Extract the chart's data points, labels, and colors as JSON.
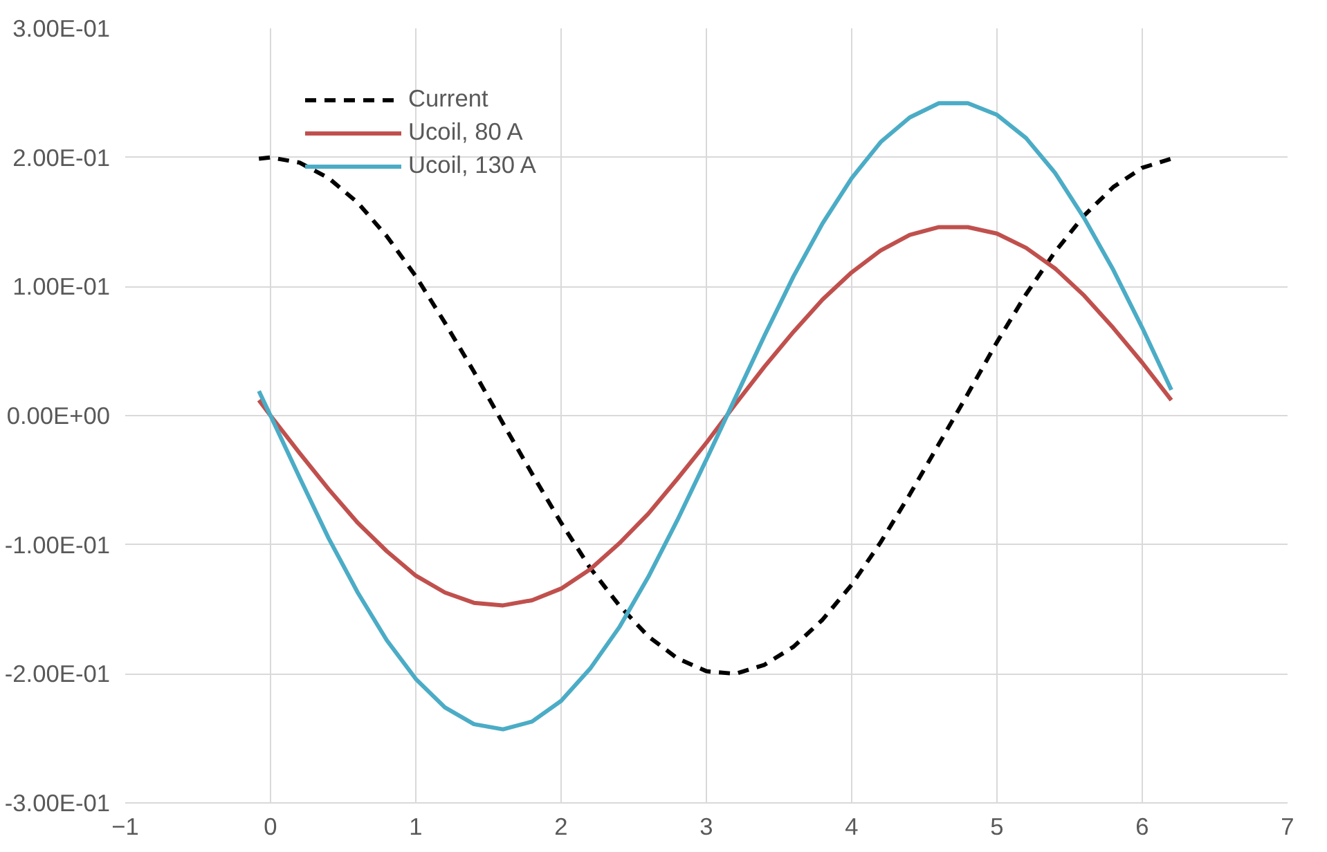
{
  "chart_data": {
    "type": "line",
    "x": [
      -0.08,
      0,
      0.2,
      0.4,
      0.6,
      0.8,
      1.0,
      1.2,
      1.4,
      1.6,
      1.8,
      2.0,
      2.2,
      2.4,
      2.6,
      2.8,
      3.0,
      3.2,
      3.4,
      3.6,
      3.8,
      4.0,
      4.2,
      4.4,
      4.6,
      4.8,
      5.0,
      5.2,
      5.4,
      5.6,
      5.8,
      6.0,
      6.2
    ],
    "series": [
      {
        "name": "Current",
        "color": "#000000",
        "line_style": "dashed",
        "values": [
          0.199,
          0.2,
          0.196,
          0.184,
          0.165,
          0.139,
          0.108,
          0.072,
          0.034,
          -0.006,
          -0.045,
          -0.083,
          -0.118,
          -0.147,
          -0.171,
          -0.188,
          -0.198,
          -0.2,
          -0.193,
          -0.179,
          -0.158,
          -0.131,
          -0.098,
          -0.061,
          -0.022,
          0.017,
          0.057,
          0.094,
          0.127,
          0.155,
          0.177,
          0.192,
          0.199
        ]
      },
      {
        "name": "Ucoil, 80 A",
        "color": "#c0504d",
        "line_style": "solid",
        "values": [
          0.012,
          0,
          -0.029,
          -0.057,
          -0.083,
          -0.105,
          -0.124,
          -0.137,
          -0.145,
          -0.147,
          -0.143,
          -0.134,
          -0.119,
          -0.099,
          -0.076,
          -0.049,
          -0.021,
          0.009,
          0.038,
          0.065,
          0.09,
          0.111,
          0.128,
          0.14,
          0.146,
          0.146,
          0.141,
          0.13,
          0.114,
          0.093,
          0.068,
          0.041,
          0.012
        ]
      },
      {
        "name": "Ucoil, 130 A",
        "color": "#4bacc6",
        "line_style": "solid",
        "values": [
          0.019,
          0,
          -0.048,
          -0.095,
          -0.137,
          -0.174,
          -0.204,
          -0.226,
          -0.239,
          -0.243,
          -0.237,
          -0.221,
          -0.196,
          -0.164,
          -0.125,
          -0.081,
          -0.034,
          0.014,
          0.062,
          0.108,
          0.149,
          0.184,
          0.212,
          0.231,
          0.242,
          0.242,
          0.233,
          0.215,
          0.188,
          0.153,
          0.113,
          0.068,
          0.02
        ]
      }
    ],
    "xlim": [
      -1,
      7
    ],
    "xticks": [
      -1,
      0,
      1,
      2,
      3,
      4,
      5,
      6,
      7
    ],
    "ylim": [
      -0.3,
      0.3
    ],
    "yticks": [
      {
        "value": -0.3,
        "label": "-3.00E-01"
      },
      {
        "value": -0.2,
        "label": "-2.00E-01"
      },
      {
        "value": -0.1,
        "label": "-1.00E-01"
      },
      {
        "value": 0,
        "label": "0.00E+00"
      },
      {
        "value": 0.1,
        "label": "1.00E-01"
      },
      {
        "value": 0.2,
        "label": "2.00E-01"
      },
      {
        "value": 0.3,
        "label": "3.00E-01"
      }
    ],
    "grid": true,
    "legend": "top left",
    "marker": "none"
  }
}
